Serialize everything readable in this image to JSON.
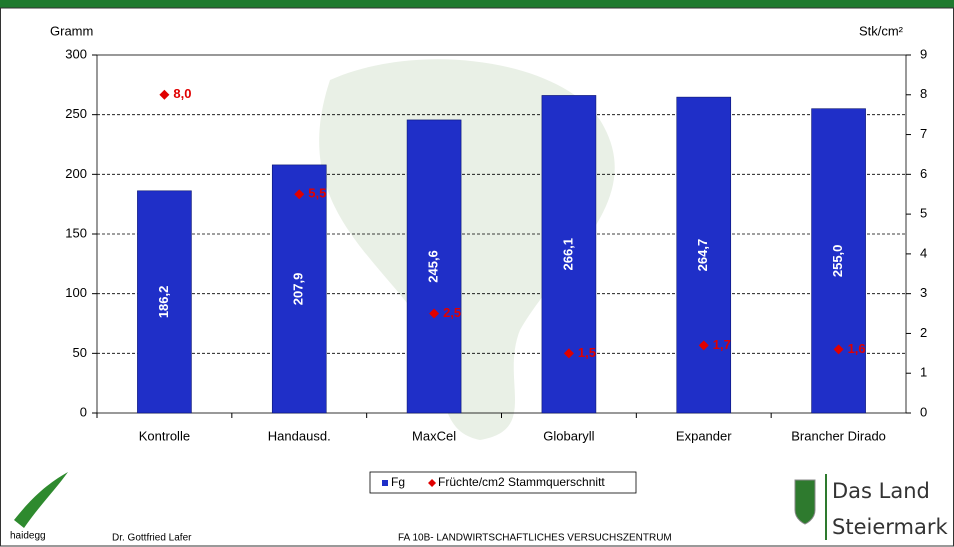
{
  "chart_data": {
    "type": "bar",
    "y_label": "Gramm",
    "y2_label": "Stk/cm²",
    "categories": [
      "Kontrolle",
      "Handausd.",
      "MaxCel",
      "Globaryll",
      "Expander",
      "Brancher Dirado"
    ],
    "series": [
      {
        "name": "Fg",
        "color": "#1f2fc8",
        "values": [
          186.2,
          207.9,
          245.6,
          266.1,
          264.7,
          255.0
        ],
        "value_labels": [
          "186,2",
          "207,9",
          "245,6",
          "266,1",
          "264,7",
          "255,0"
        ]
      },
      {
        "name": "Früchte/cm2 Stammquerschnitt",
        "type": "scatter",
        "axis": "y2",
        "color": "#e00000",
        "values": [
          8.0,
          5.5,
          2.5,
          1.5,
          1.7,
          1.6
        ],
        "value_labels": [
          "8,0",
          "5,5",
          "2,5",
          "1,5",
          "1,7",
          "1,6"
        ]
      }
    ],
    "ylim": [
      0,
      300
    ],
    "yticks": [
      0,
      50,
      100,
      150,
      200,
      250,
      300
    ],
    "y2lim": [
      0,
      9
    ],
    "y2ticks": [
      0,
      1,
      2,
      3,
      4,
      5,
      6,
      7,
      8,
      9
    ],
    "grid": true,
    "legend": "bottom"
  },
  "footer": {
    "logo_left": "haidegg",
    "author": "Dr. Gottfried Lafer",
    "institution": "FA 10B- LANDWIRTSCHAFTLICHES VERSUCHSZENTRUM",
    "logo_right_1": "Das Land",
    "logo_right_2": "Steiermark"
  }
}
